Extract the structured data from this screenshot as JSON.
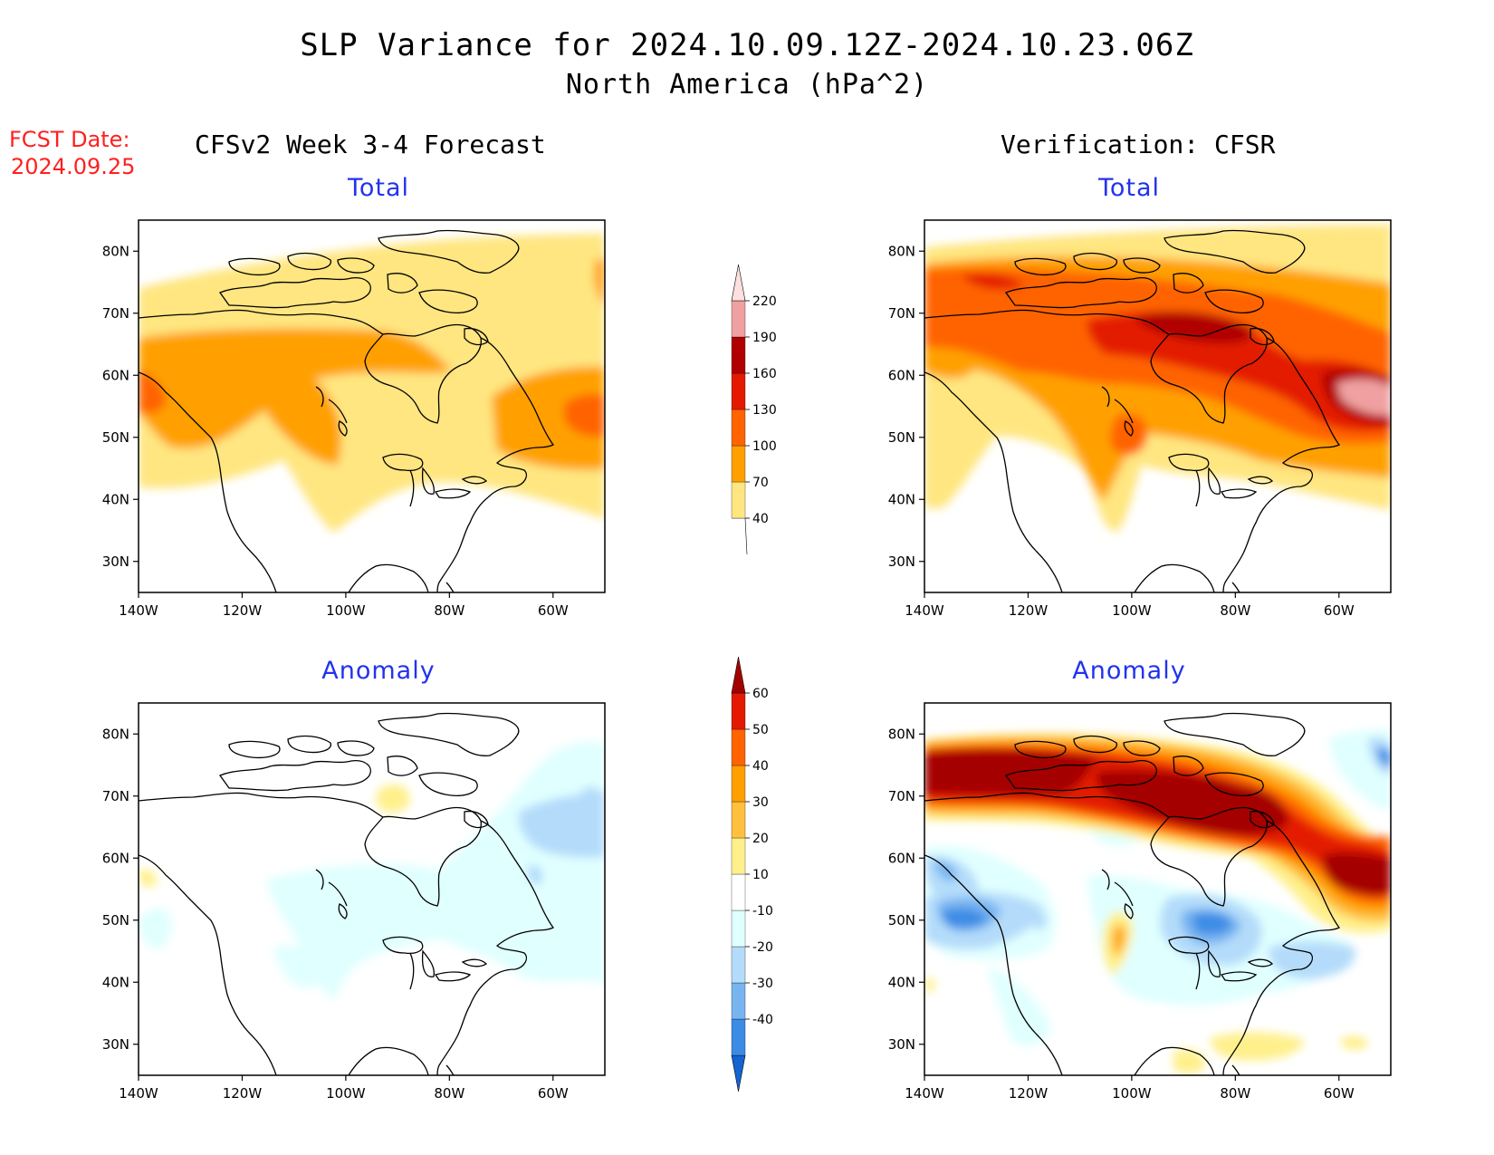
{
  "title": "SLP Variance for 2024.10.09.12Z-2024.10.23.06Z",
  "subtitle": "North America (hPa^2)",
  "fcst_label": "FCST Date:",
  "fcst_date": "2024.09.25",
  "left_heading": "CFSv2 Week 3-4 Forecast",
  "right_heading": "Verification: CFSR",
  "panels": [
    {
      "id": "forecast-total",
      "title": "Total"
    },
    {
      "id": "verification-total",
      "title": "Total"
    },
    {
      "id": "forecast-anomaly",
      "title": "Anomaly"
    },
    {
      "id": "verification-anomaly",
      "title": "Anomaly"
    }
  ],
  "map_axes": {
    "lon_ticks": [
      "140W",
      "120W",
      "100W",
      "80W",
      "60W"
    ],
    "lat_ticks": [
      "80N",
      "70N",
      "60N",
      "50N",
      "40N",
      "30N"
    ],
    "lon_range": [
      -140,
      -50
    ],
    "lat_range": [
      25,
      85
    ]
  },
  "colorbar_total": {
    "labels": [
      "40",
      "70",
      "100",
      "130",
      "160",
      "190",
      "220"
    ],
    "colors": [
      "#ffe680",
      "#ffa000",
      "#ff6400",
      "#e31a00",
      "#b00000",
      "#f0a0a0",
      "#ffe0e0"
    ]
  },
  "colorbar_anomaly": {
    "labels": [
      "-40",
      "-30",
      "-20",
      "-10",
      "10",
      "20",
      "30",
      "40",
      "50",
      "60"
    ],
    "colors": [
      "#1464d2",
      "#3c8ce6",
      "#78b4f0",
      "#b4dcfa",
      "#e0ffff",
      "#ffffff",
      "#fff08c",
      "#ffc040",
      "#ffa000",
      "#ff6400",
      "#e31a00",
      "#a50000"
    ]
  }
}
